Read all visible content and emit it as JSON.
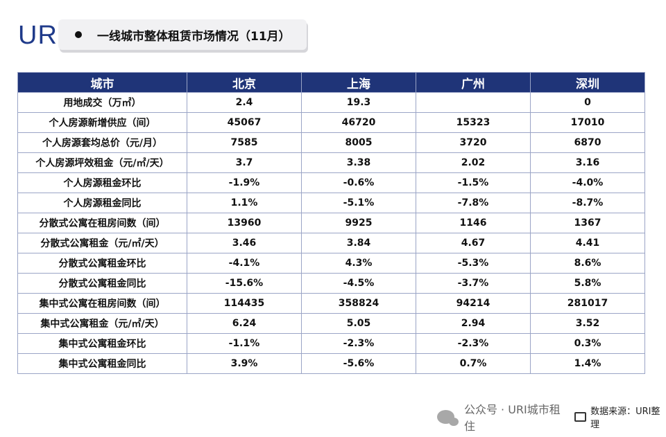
{
  "logo": "URI",
  "title": "一线城市整体租赁市场情况（11月）",
  "table": {
    "headers": [
      "城市",
      "北京",
      "上海",
      "广州",
      "深圳"
    ],
    "rows": [
      {
        "label": "用地成交（万㎡）",
        "cells": [
          {
            "v": "2.4",
            "c": ""
          },
          {
            "v": "19.3",
            "c": ""
          },
          {
            "v": "",
            "c": ""
          },
          {
            "v": "0",
            "c": ""
          }
        ]
      },
      {
        "label": "个人房源新增供应（间）",
        "cells": [
          {
            "v": "45067",
            "c": ""
          },
          {
            "v": "46720",
            "c": ""
          },
          {
            "v": "15323",
            "c": ""
          },
          {
            "v": "17010",
            "c": ""
          }
        ]
      },
      {
        "label": "个人房源套均总价（元/月）",
        "cells": [
          {
            "v": "7585",
            "c": ""
          },
          {
            "v": "8005",
            "c": ""
          },
          {
            "v": "3720",
            "c": ""
          },
          {
            "v": "6870",
            "c": ""
          }
        ]
      },
      {
        "label": "个人房源坪效租金（元/㎡/天）",
        "cells": [
          {
            "v": "3.7",
            "c": ""
          },
          {
            "v": "3.38",
            "c": ""
          },
          {
            "v": "2.02",
            "c": ""
          },
          {
            "v": "3.16",
            "c": ""
          }
        ]
      },
      {
        "label": "个人房源租金环比",
        "cells": [
          {
            "v": "-1.9%",
            "c": "neg"
          },
          {
            "v": "-0.6%",
            "c": "neg"
          },
          {
            "v": "-1.5%",
            "c": "neg"
          },
          {
            "v": "-4.0%",
            "c": "neg"
          }
        ]
      },
      {
        "label": "个人房源租金同比",
        "cells": [
          {
            "v": "1.1%",
            "c": "pos"
          },
          {
            "v": "-5.1%",
            "c": "neg"
          },
          {
            "v": "-7.8%",
            "c": "neg"
          },
          {
            "v": "-8.7%",
            "c": "neg"
          }
        ]
      },
      {
        "label": "分散式公寓在租房间数（间）",
        "cells": [
          {
            "v": "13960",
            "c": ""
          },
          {
            "v": "9925",
            "c": ""
          },
          {
            "v": "1146",
            "c": ""
          },
          {
            "v": "1367",
            "c": ""
          }
        ]
      },
      {
        "label": "分散式公寓租金（元/㎡/天）",
        "cells": [
          {
            "v": "3.46",
            "c": ""
          },
          {
            "v": "3.84",
            "c": ""
          },
          {
            "v": "4.67",
            "c": ""
          },
          {
            "v": "4.41",
            "c": ""
          }
        ]
      },
      {
        "label": "分散式公寓租金环比",
        "cells": [
          {
            "v": "-4.1%",
            "c": "neg"
          },
          {
            "v": "4.3%",
            "c": "pos"
          },
          {
            "v": "-5.3%",
            "c": "neg"
          },
          {
            "v": "8.6%",
            "c": "pos"
          }
        ]
      },
      {
        "label": "分散式公寓租金同比",
        "cells": [
          {
            "v": "-15.6%",
            "c": "neg"
          },
          {
            "v": "-4.5%",
            "c": "neg"
          },
          {
            "v": "-3.7%",
            "c": "neg"
          },
          {
            "v": "5.8%",
            "c": "pos"
          }
        ]
      },
      {
        "label": "集中式公寓在租房间数（间）",
        "cells": [
          {
            "v": "114435",
            "c": ""
          },
          {
            "v": "358824",
            "c": ""
          },
          {
            "v": "94214",
            "c": ""
          },
          {
            "v": "281017",
            "c": ""
          }
        ]
      },
      {
        "label": "集中式公寓租金（元/㎡/天）",
        "cells": [
          {
            "v": "6.24",
            "c": ""
          },
          {
            "v": "5.05",
            "c": ""
          },
          {
            "v": "2.94",
            "c": ""
          },
          {
            "v": "3.52",
            "c": ""
          }
        ]
      },
      {
        "label": "集中式公寓租金环比",
        "cells": [
          {
            "v": "-1.1%",
            "c": "neg"
          },
          {
            "v": "-2.3%",
            "c": "neg"
          },
          {
            "v": "-2.3%",
            "c": "neg"
          },
          {
            "v": "0.3%",
            "c": "pos"
          }
        ]
      },
      {
        "label": "集中式公寓租金同比",
        "cells": [
          {
            "v": "3.9%",
            "c": "pos"
          },
          {
            "v": "-5.6%",
            "c": "neg"
          },
          {
            "v": "0.7%",
            "c": "pos"
          },
          {
            "v": "1.4%",
            "c": "pos"
          }
        ]
      }
    ]
  },
  "footer": {
    "account": "公众号 · URI城市租住",
    "source": "数据来源：URI整理"
  },
  "colors": {
    "header_bg": "#1f3478",
    "positive": "#c0282f",
    "negative": "#6aa84f"
  }
}
